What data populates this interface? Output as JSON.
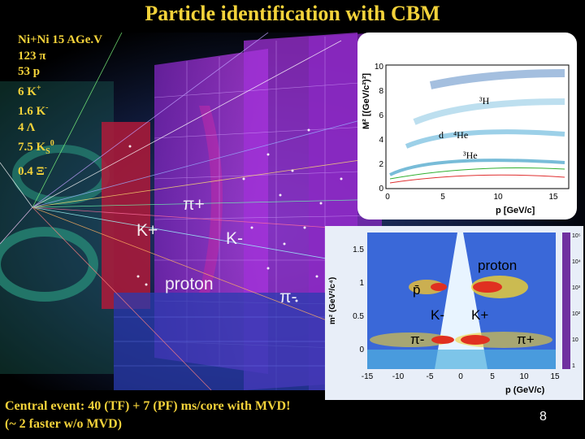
{
  "title": "Particle identification with CBM",
  "event": {
    "system": "Ni+Ni 15 AGe.V",
    "lines": [
      {
        "count": "123",
        "sym": "π",
        "sup": "",
        "sub": ""
      },
      {
        "count": "53",
        "sym": "p",
        "sup": "",
        "sub": ""
      },
      {
        "count": "6",
        "sym": "K",
        "sup": "+",
        "sub": ""
      },
      {
        "count": "1.6",
        "sym": "K",
        "sup": "-",
        "sub": ""
      },
      {
        "count": "4",
        "sym": "Λ",
        "sup": "",
        "sub": ""
      },
      {
        "count": "7.5",
        "sym": "K",
        "sup": "0",
        "sub": "S"
      },
      {
        "count": "0.4",
        "sym": "Ξ",
        "sup": "-",
        "sub": ""
      }
    ]
  },
  "scene_labels": {
    "kplus": "K+",
    "kminus": "K-",
    "piplus": "π+",
    "piminus": "π-",
    "proton": "proton"
  },
  "plot_top": {
    "y_axis_label": "M² [(GeV/c²)²]",
    "x_axis_label": "p [GeV/c]",
    "y_ticks": [
      "0",
      "2",
      "4",
      "6",
      "8",
      "10"
    ],
    "x_ticks": [
      "0",
      "5",
      "10",
      "15"
    ],
    "labels": {
      "h3": "³H",
      "d": "d",
      "he4": "⁴He",
      "he3": "³He"
    }
  },
  "plot_bottom": {
    "y_axis_label": "m² (GeV²/c⁴)",
    "x_axis_label": "p (GeV/c)",
    "y_ticks": [
      "0",
      "0.5",
      "1",
      "1.5"
    ],
    "x_ticks": [
      "-15",
      "-10",
      "-5",
      "0",
      "5",
      "10",
      "15"
    ],
    "z_ticks": [
      "10⁵",
      "10⁴",
      "10³",
      "10²",
      "10",
      "1"
    ],
    "labels": {
      "proton": "proton",
      "pbar": "p̄",
      "kminus": "K-",
      "kplus": "K+",
      "piminus": "π-",
      "piplus": "π+"
    }
  },
  "caption": {
    "line1": "Central event: 40 (TF) + 7 (PF) ms/core with MVD!",
    "line2": "(~ 2 faster w/o MVD)"
  },
  "page_number": "8"
}
